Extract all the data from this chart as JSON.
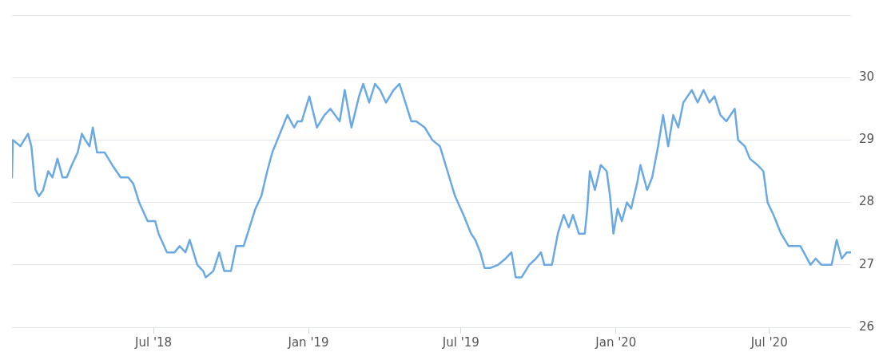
{
  "chart_data": {
    "type": "line",
    "grid": "y",
    "marker": "none",
    "line_style": "solid",
    "legend": false,
    "xlim": [
      "2018-01-14",
      "2020-10-06"
    ],
    "xticks": [
      {
        "value": "2018-07-01",
        "label": "Jul '18"
      },
      {
        "value": "2019-01-01",
        "label": "Jan '19"
      },
      {
        "value": "2019-07-01",
        "label": "Jul '19"
      },
      {
        "value": "2020-01-01",
        "label": "Jan '20"
      },
      {
        "value": "2020-07-01",
        "label": "Jul '20"
      }
    ],
    "ylim": [
      26,
      31
    ],
    "yticks": [
      26,
      27,
      28,
      29,
      30,
      {
        "value": 31,
        "label": null
      }
    ],
    "series": [
      {
        "color": "#6aa9e3",
        "x": [
          "2018-01-14",
          "2018-01-15",
          "2018-01-24",
          "2018-02-02",
          "2018-02-06",
          "2018-02-11",
          "2018-02-15",
          "2018-02-20",
          "2018-02-26",
          "2018-03-03",
          "2018-03-09",
          "2018-03-15",
          "2018-03-20",
          "2018-03-26",
          "2018-04-02",
          "2018-04-07",
          "2018-04-11",
          "2018-04-16",
          "2018-04-20",
          "2018-04-25",
          "2018-05-04",
          "2018-05-13",
          "2018-05-23",
          "2018-06-01",
          "2018-06-07",
          "2018-06-14",
          "2018-06-24",
          "2018-07-03",
          "2018-07-07",
          "2018-07-17",
          "2018-07-26",
          "2018-08-01",
          "2018-08-08",
          "2018-08-13",
          "2018-08-22",
          "2018-08-29",
          "2018-09-01",
          "2018-09-10",
          "2018-09-17",
          "2018-09-23",
          "2018-10-01",
          "2018-10-07",
          "2018-10-16",
          "2018-10-23",
          "2018-10-30",
          "2018-11-06",
          "2018-11-13",
          "2018-11-19",
          "2018-11-25",
          "2018-12-01",
          "2018-12-07",
          "2018-12-15",
          "2018-12-19",
          "2018-12-24",
          "2019-01-02",
          "2019-01-11",
          "2019-01-20",
          "2019-01-27",
          "2019-02-07",
          "2019-02-13",
          "2019-02-21",
          "2019-03-02",
          "2019-03-07",
          "2019-03-14",
          "2019-03-21",
          "2019-03-27",
          "2019-04-03",
          "2019-04-12",
          "2019-04-19",
          "2019-04-26",
          "2019-05-03",
          "2019-05-09",
          "2019-05-19",
          "2019-05-28",
          "2019-06-06",
          "2019-06-15",
          "2019-06-24",
          "2019-07-04",
          "2019-07-13",
          "2019-07-18",
          "2019-07-24",
          "2019-07-29",
          "2019-08-05",
          "2019-08-14",
          "2019-08-23",
          "2019-08-30",
          "2019-09-04",
          "2019-09-11",
          "2019-09-20",
          "2019-09-28",
          "2019-10-04",
          "2019-10-08",
          "2019-10-17",
          "2019-10-24",
          "2019-10-31",
          "2019-11-06",
          "2019-11-11",
          "2019-11-18",
          "2019-11-25",
          "2019-11-28",
          "2019-12-01",
          "2019-12-07",
          "2019-12-14",
          "2019-12-21",
          "2019-12-25",
          "2019-12-29",
          "2020-01-03",
          "2020-01-08",
          "2020-01-14",
          "2020-01-19",
          "2020-01-26",
          "2020-01-30",
          "2020-02-07",
          "2020-02-13",
          "2020-02-20",
          "2020-02-26",
          "2020-03-03",
          "2020-03-09",
          "2020-03-15",
          "2020-03-21",
          "2020-03-31",
          "2020-04-07",
          "2020-04-14",
          "2020-04-21",
          "2020-04-27",
          "2020-05-04",
          "2020-05-11",
          "2020-05-21",
          "2020-05-25",
          "2020-06-02",
          "2020-06-08",
          "2020-06-17",
          "2020-06-24",
          "2020-06-29",
          "2020-07-06",
          "2020-07-15",
          "2020-07-24",
          "2020-08-07",
          "2020-08-11",
          "2020-08-19",
          "2020-08-25",
          "2020-09-01",
          "2020-09-13",
          "2020-09-19",
          "2020-09-25",
          "2020-10-01",
          "2020-10-06"
        ],
        "values": [
          28.4,
          29.0,
          28.9,
          29.1,
          28.9,
          28.2,
          28.1,
          28.2,
          28.5,
          28.4,
          28.7,
          28.4,
          28.4,
          28.6,
          28.8,
          29.1,
          29.0,
          28.9,
          29.2,
          28.8,
          28.8,
          28.6,
          28.4,
          28.4,
          28.3,
          28.0,
          27.7,
          27.7,
          27.5,
          27.2,
          27.2,
          27.3,
          27.2,
          27.4,
          27.0,
          26.9,
          26.8,
          26.9,
          27.2,
          26.9,
          26.9,
          27.3,
          27.3,
          27.6,
          27.9,
          28.1,
          28.5,
          28.8,
          29.0,
          29.2,
          29.4,
          29.2,
          29.3,
          29.3,
          29.7,
          29.2,
          29.4,
          29.5,
          29.3,
          29.8,
          29.2,
          29.7,
          29.9,
          29.6,
          29.9,
          29.8,
          29.6,
          29.8,
          29.9,
          29.6,
          29.3,
          29.3,
          29.2,
          29.0,
          28.9,
          28.5,
          28.1,
          27.8,
          27.5,
          27.4,
          27.2,
          26.95,
          26.95,
          27.0,
          27.1,
          27.2,
          26.8,
          26.8,
          27.0,
          27.1,
          27.2,
          27.0,
          27.0,
          27.5,
          27.8,
          27.6,
          27.8,
          27.5,
          27.5,
          27.9,
          28.5,
          28.2,
          28.6,
          28.5,
          28.1,
          27.5,
          27.9,
          27.7,
          28.0,
          27.9,
          28.3,
          28.6,
          28.2,
          28.4,
          28.9,
          29.4,
          28.9,
          29.4,
          29.2,
          29.6,
          29.8,
          29.6,
          29.8,
          29.6,
          29.7,
          29.4,
          29.3,
          29.5,
          29.0,
          28.9,
          28.7,
          28.6,
          28.5,
          28.0,
          27.8,
          27.5,
          27.3,
          27.3,
          27.2,
          27.0,
          27.1,
          27.0,
          27.0,
          27.4,
          27.1,
          27.2,
          27.2
        ]
      }
    ]
  }
}
